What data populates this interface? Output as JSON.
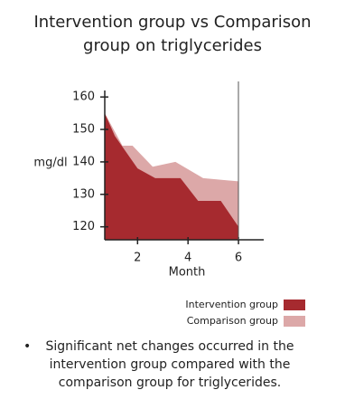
{
  "chart_data": {
    "type": "area",
    "title": "Intervention group vs Comparison group on triglycerides",
    "x_label": "Month",
    "y_label": "mg/dl",
    "series": [
      {
        "name": "Comparison group",
        "color": "#dca8a8",
        "x": [
          0.7,
          1.4,
          1.8,
          2.6,
          3.5,
          4.6,
          6
        ],
        "values": [
          155,
          145,
          145,
          138.5,
          140,
          135,
          134
        ]
      },
      {
        "name": "Intervention group",
        "color": "#a62a2f",
        "x": [
          0.7,
          1.1,
          2,
          2.7,
          3.7,
          4.4,
          5.3,
          6
        ],
        "values": [
          155,
          148,
          138,
          135,
          135,
          128,
          128,
          120
        ]
      }
    ],
    "legend_order": [
      1,
      0
    ],
    "xlim": [
      0.7,
      7
    ],
    "xticks": [
      2,
      4,
      6
    ],
    "ylim": [
      116,
      162
    ],
    "yticks": [
      120,
      130,
      140,
      150,
      160
    ],
    "legend": "bottom-right",
    "annotation": "Significant net changes occurred in the intervention group compared with the comparison group for triglycerides."
  }
}
